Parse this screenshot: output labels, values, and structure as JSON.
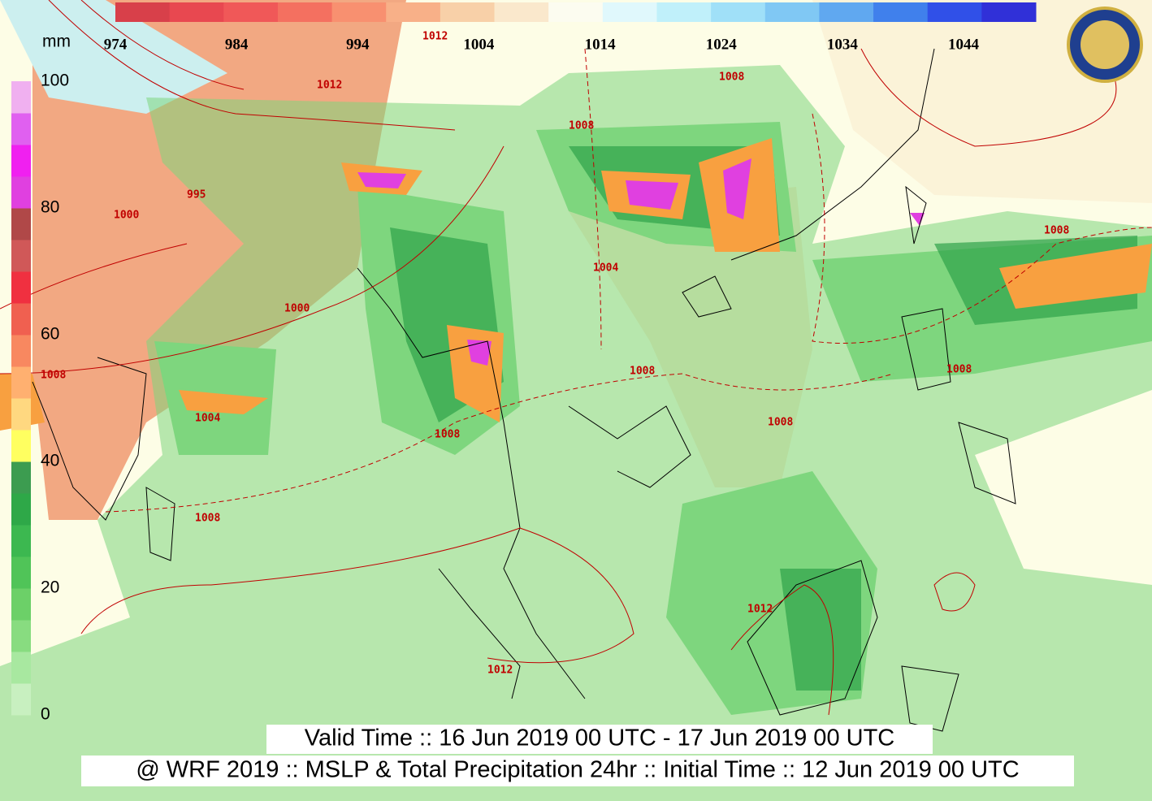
{
  "captions": {
    "valid_time": "Valid Time :: 16 Jun 2019 00 UTC - 17 Jun 2019 00 UTC",
    "model_info": "@ WRF 2019 :: MSLP & Total Precipitation 24hr :: Initial Time :: 12 Jun 2019 00 UTC"
  },
  "pressure_scale": {
    "labels": [
      974,
      984,
      994,
      1004,
      1014,
      1024,
      1034,
      1044
    ],
    "colors": [
      "#d8404a",
      "#e84850",
      "#f05858",
      "#f47060",
      "#f89070",
      "#f8b088",
      "#f8d0a8",
      "#fae8cc",
      "#fcfcf0",
      "#e0f8fc",
      "#c0f0fa",
      "#a0e0f8",
      "#80c8f4",
      "#60a8f0",
      "#4080ec",
      "#3050e8",
      "#3030d8"
    ]
  },
  "precip_scale": {
    "unit": "mm",
    "ticks": [
      0,
      20,
      40,
      60,
      80,
      100
    ],
    "colors": [
      "#c8f0c0",
      "#a8e8a0",
      "#88dc80",
      "#6cd068",
      "#50c458",
      "#3cb850",
      "#2ea848",
      "#3c9c50",
      "#ffff60",
      "#ffd880",
      "#ffb070",
      "#f88860",
      "#f06050",
      "#f03040",
      "#d05858",
      "#b04848",
      "#e040e0",
      "#f020f0",
      "#e060f0",
      "#f0b0f0"
    ]
  },
  "isobar_labels": [
    "1012",
    "1012",
    "1008",
    "995",
    "1000",
    "1000",
    "1004",
    "1008",
    "1008",
    "1008",
    "1008",
    "1008",
    "1008",
    "1008",
    "1012",
    "1012",
    "1008",
    "1004"
  ]
}
